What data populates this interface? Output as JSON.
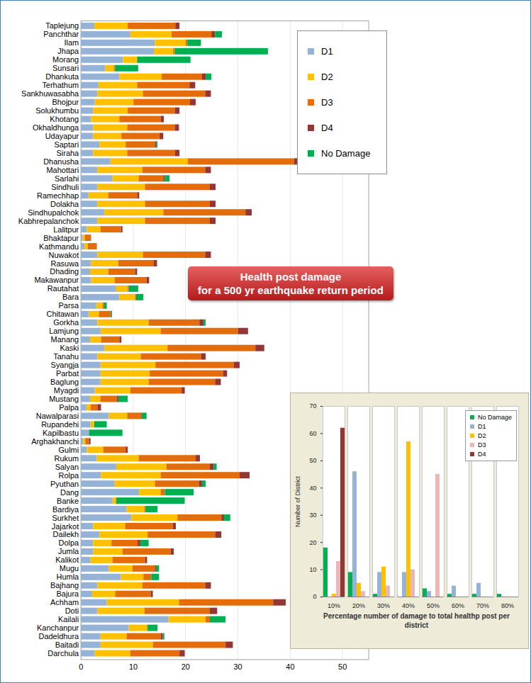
{
  "chart_data": [
    {
      "type": "bar",
      "orientation": "horizontal",
      "stacked": true,
      "title": "Health post damage",
      "subtitle": "for a 500 yr earthquake return period",
      "categories": [
        "Taplejung",
        "Panchthar",
        "Ilam",
        "Jhapa",
        "Morang",
        "Sunsari",
        "Dhankuta",
        "Terhathum",
        "Sankhuwasabha",
        "Bhojpur",
        "Solukhumbu",
        "Khotang",
        "Okhaldhunga",
        "Udayapur",
        "Saptari",
        "Siraha",
        "Dhanusha",
        "Mahottari",
        "Sarlahi",
        "Sindhuli",
        "Ramechhap",
        "Dolakha",
        "Sindhupalchok",
        "Kabhrepalanchok",
        "Lalitpur",
        "Bhaktapur",
        "Kathmandu",
        "Nuwakot",
        "Rasuwa",
        "Dhading",
        "Makawanpur",
        "Rautahat",
        "Bara",
        "Parsa",
        "Chitawan",
        "Gorkha",
        "Lamjung",
        "Manang",
        "Kaski",
        "Tanahu",
        "Syangja",
        "Parbat",
        "Baglung",
        "Myagdi",
        "Mustang",
        "Palpa",
        "Nawalparasi",
        "Rupandehi",
        "Kapilbastu",
        "Arghakhanchi",
        "Gulmi",
        "Rukum",
        "Salyan",
        "Rolpa",
        "Pyuthan",
        "Dang",
        "Banke",
        "Bardiya",
        "Surkhet",
        "Jajarkot",
        "Dailekh",
        "Dolpa",
        "Jumla",
        "Kalikot",
        "Mugu",
        "Humla",
        "Bajhang",
        "Bajura",
        "Achham",
        "Doti",
        "Kailali",
        "Kanchanpur",
        "Dadeldhura",
        "Baitadi",
        "Darchula"
      ],
      "series": [
        {
          "name": "D1",
          "color": "#95b3d7",
          "values": [
            2.6,
            9.5,
            14.2,
            14,
            8.1,
            4.7,
            7.4,
            3.4,
            3.2,
            2.7,
            2.4,
            2,
            2.4,
            2.4,
            3.6,
            2.4,
            5.7,
            3.2,
            6.1,
            3.2,
            1.5,
            3.2,
            4.5,
            3.2,
            1.2,
            0.4,
            0.7,
            3.2,
            2,
            1.8,
            2,
            6.8,
            7.4,
            3,
            1.6,
            3.2,
            3.8,
            1.8,
            4.5,
            3.2,
            3.8,
            3.8,
            3.8,
            2.7,
            1.8,
            1.1,
            5.4,
            1.9,
            1.6,
            0.5,
            1.2,
            3.1,
            6.8,
            3.9,
            6.5,
            11.2,
            6.1,
            8.8,
            9.7,
            2.4,
            3.6,
            2.4,
            2.4,
            1.9,
            5.4,
            7.7,
            3.2,
            2.2,
            5,
            3.2,
            16.8,
            9.2,
            3.8,
            3.8,
            2.7
          ]
        },
        {
          "name": "D2",
          "color": "#ffc000",
          "values": [
            6.4,
            7.9,
            5.9,
            3.7,
            2.7,
            1.7,
            8.1,
            7.4,
            8.7,
            7.4,
            6.6,
            5.4,
            6.5,
            5.4,
            5,
            6.5,
            14.8,
            8.6,
            5,
            9.1,
            3.8,
            9.1,
            11.3,
            9.1,
            2.6,
            0.4,
            0.7,
            8.7,
            5.2,
            3.5,
            4.5,
            2.2,
            3,
            1.2,
            1.9,
            9.8,
            11.5,
            2.1,
            12.1,
            8.3,
            10.5,
            9.4,
            9.2,
            6.8,
            2,
            0.8,
            3.5,
            0.7,
            0,
            0.4,
            3.1,
            8,
            9.6,
            11.4,
            7.7,
            4.1,
            0.7,
            3.4,
            8.8,
            6.1,
            9.2,
            3.5,
            5.6,
            4.2,
            4.5,
            4.3,
            8.6,
            4.4,
            13.8,
            9,
            7.1,
            3.5,
            5,
            10,
            6.8
          ]
        },
        {
          "name": "D3",
          "color": "#e46c0a",
          "values": [
            9.1,
            7.6,
            0.3,
            0.3,
            0,
            0.2,
            7.7,
            10,
            11.9,
            10.8,
            9,
            7.9,
            9.1,
            7.3,
            5.6,
            9.1,
            20.3,
            12,
            4.7,
            12.4,
            5.5,
            12.4,
            15.7,
            12.4,
            3.9,
            1.2,
            1.7,
            11.9,
            6.8,
            5.1,
            6.1,
            0.2,
            0.2,
            0.3,
            2.2,
            9.7,
            14.8,
            3.5,
            16.8,
            11.5,
            15,
            14,
            12.7,
            9.8,
            3.1,
            1.3,
            2.7,
            0,
            0,
            0.7,
            4.3,
            10.9,
            8.3,
            15.1,
            8.4,
            0.8,
            0,
            0.2,
            8.4,
            9.1,
            12.9,
            5,
            9.2,
            6.2,
            4.3,
            1.5,
            12,
            6.8,
            18,
            12.5,
            0.8,
            0.1,
            6.5,
            13.9,
            9.4
          ]
        },
        {
          "name": "D4",
          "color": "#943634",
          "values": [
            0.8,
            0.7,
            0,
            0,
            0,
            0,
            0.7,
            1.1,
            1.1,
            1.1,
            0.9,
            0.6,
            0.8,
            0.7,
            0.3,
            0.9,
            2.3,
            1.1,
            0.3,
            1.1,
            0.4,
            1.1,
            1.2,
            1.1,
            0.3,
            0,
            0,
            1.1,
            0.6,
            0.4,
            0.5,
            0,
            0,
            0,
            0.1,
            0.8,
            1.9,
            0.4,
            1.7,
            0.9,
            1.1,
            0.8,
            1.1,
            0.6,
            0.3,
            0.7,
            0.1,
            0,
            0,
            0.3,
            0.4,
            0.8,
            0.7,
            1.9,
            0.6,
            0,
            0,
            0,
            0.5,
            0.6,
            1.2,
            0.5,
            0.6,
            0.4,
            0.3,
            0,
            1.1,
            0.4,
            2.4,
            1.4,
            0,
            0,
            0.4,
            1.4,
            1
          ]
        },
        {
          "name": "No Damage",
          "color": "#00b050",
          "values": [
            0,
            1.3,
            2.6,
            17.8,
            10.2,
            4.4,
            1.1,
            0,
            0,
            0,
            0,
            0,
            0,
            0,
            0.2,
            0,
            0,
            0,
            0.9,
            0,
            0,
            0,
            0,
            0,
            0,
            0,
            0,
            0,
            0,
            0,
            0,
            1.8,
            1.4,
            0.5,
            0.2,
            0.4,
            0,
            0,
            0,
            0,
            0,
            0,
            0,
            0,
            1.8,
            0,
            0.9,
            2.4,
            6.4,
            0,
            0,
            0,
            0.6,
            0,
            0.7,
            5.5,
            13.1,
            2.3,
            1.2,
            0,
            0,
            1.6,
            0,
            0,
            0.5,
            1.5,
            0,
            0,
            0,
            0,
            3,
            1.9,
            0.3,
            0,
            0
          ]
        }
      ],
      "xlim": [
        0,
        55
      ],
      "xticks": [
        0,
        10,
        20,
        30,
        40,
        50
      ],
      "grid": true,
      "legend": "top-right"
    },
    {
      "type": "bar",
      "x_label": "Percentage number of damage to total healthp post per district",
      "y_label": "Number of District",
      "categories": [
        "10%",
        "20%",
        "30%",
        "40%",
        "50%",
        "60%",
        "70%",
        "80%"
      ],
      "series": [
        {
          "name": "No Damage",
          "color": "#00b050",
          "values": [
            18,
            9,
            1,
            0,
            3,
            1,
            1,
            1
          ]
        },
        {
          "name": "D1",
          "color": "#95b3d7",
          "values": [
            0,
            46,
            9,
            9,
            2,
            4,
            5,
            0
          ]
        },
        {
          "name": "D2",
          "color": "#ffc000",
          "values": [
            1,
            5,
            11,
            57,
            0,
            0,
            0,
            0
          ]
        },
        {
          "name": "D3",
          "color": "#e6b9b8",
          "values": [
            13,
            2,
            4,
            10,
            45,
            0,
            0,
            0
          ]
        },
        {
          "name": "D4",
          "color": "#943634",
          "values": [
            62,
            0,
            0,
            0,
            0,
            0,
            0,
            0
          ]
        }
      ],
      "ylim": [
        0,
        70
      ],
      "yticks": [
        0,
        10,
        20,
        30,
        40,
        50,
        60,
        70
      ],
      "grid": false,
      "legend": "top-right"
    }
  ]
}
